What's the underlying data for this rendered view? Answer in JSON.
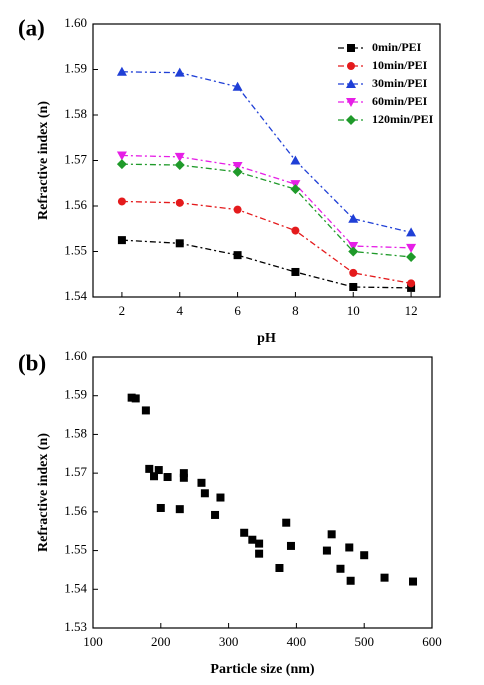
{
  "chart_data": [
    {
      "type": "line",
      "label": "(a)",
      "x_label": "pH",
      "y_label": "Refractive index (n)",
      "x": [
        2,
        4,
        6,
        8,
        10,
        12
      ],
      "xlim": [
        1,
        13
      ],
      "xticks": [
        2,
        4,
        6,
        8,
        10,
        12
      ],
      "ylim": [
        1.54,
        1.6
      ],
      "yticks": [
        1.54,
        1.55,
        1.56,
        1.57,
        1.58,
        1.59,
        {
          "value": 1.6,
          "label": "1.60"
        }
      ],
      "legend": "top-right",
      "series": [
        {
          "name": "0min/PEI",
          "color": "#000000",
          "marker": "square",
          "values": [
            1.5525,
            1.5518,
            1.5492,
            1.5455,
            1.5422,
            1.542
          ]
        },
        {
          "name": "10min/PEI",
          "color": "#e41a1c",
          "marker": "circle",
          "values": [
            1.561,
            1.5607,
            1.5592,
            1.5546,
            1.5453,
            1.543
          ]
        },
        {
          "name": "30min/PEI",
          "color": "#1f3fd6",
          "marker": "triangle-up",
          "values": [
            1.5895,
            1.5893,
            1.5862,
            1.57,
            1.5572,
            1.5542
          ]
        },
        {
          "name": "60min/PEI",
          "color": "#e61fe6",
          "marker": "triangle-down",
          "values": [
            1.5711,
            1.5708,
            1.5688,
            1.5648,
            1.5512,
            1.5508
          ]
        },
        {
          "name": "120min/PEI",
          "color": "#1f9a2a",
          "marker": "diamond",
          "values": [
            1.5692,
            1.569,
            1.5675,
            1.5637,
            1.55,
            1.5488
          ]
        }
      ]
    },
    {
      "type": "scatter",
      "label": "(b)",
      "x_label": "Particle size (nm)",
      "y_label": "Refractive index (n)",
      "xlim": [
        100,
        600
      ],
      "xticks": [
        100,
        200,
        300,
        400,
        500,
        600
      ],
      "ylim": [
        1.53,
        1.6
      ],
      "yticks": [
        1.53,
        1.54,
        1.55,
        1.56,
        1.57,
        1.58,
        1.59,
        {
          "value": 1.6,
          "label": "1.60"
        }
      ],
      "color": "#000000",
      "marker": "square",
      "x": [
        157,
        163,
        178,
        183,
        190,
        197,
        200,
        210,
        228,
        234,
        234,
        260,
        265,
        280,
        288,
        323,
        335,
        345,
        345,
        375,
        385,
        392,
        445,
        452,
        465,
        478,
        480,
        500,
        530,
        572
      ],
      "values": [
        1.5895,
        1.5893,
        1.5862,
        1.5711,
        1.5692,
        1.5708,
        1.561,
        1.569,
        1.5607,
        1.57,
        1.5688,
        1.5675,
        1.5648,
        1.5592,
        1.5637,
        1.5546,
        1.5528,
        1.5518,
        1.5492,
        1.5455,
        1.5572,
        1.5512,
        1.55,
        1.5542,
        1.5453,
        1.5508,
        1.5422,
        1.5488,
        1.543,
        1.542
      ]
    }
  ]
}
